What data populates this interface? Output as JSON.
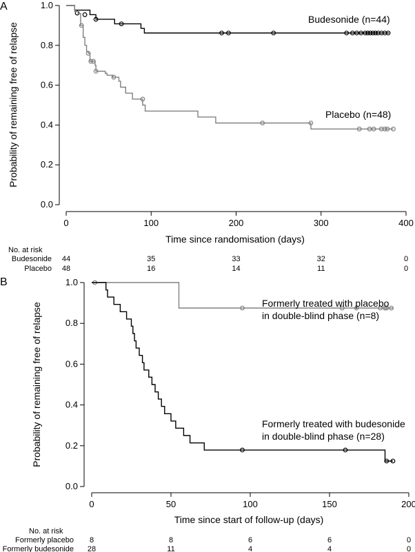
{
  "panels": [
    {
      "label": "A",
      "chart_data": {
        "type": "line",
        "xlabel": "Time since randomisation (days)",
        "ylabel": "Probability of remaining free of relapse",
        "xlim": [
          0,
          400
        ],
        "ylim": [
          0,
          1
        ],
        "xticks": [
          0,
          100,
          200,
          300,
          400
        ],
        "yticks": [
          "0.0",
          "0.2",
          "0.4",
          "0.6",
          "0.8",
          "1.0"
        ],
        "series": [
          {
            "name": "Budesonide (n=44)",
            "color": "#000000",
            "steps": [
              [
                0,
                1.0
              ],
              [
                10,
                0.977
              ],
              [
                28,
                0.954
              ],
              [
                35,
                0.931
              ],
              [
                57,
                0.908
              ],
              [
                65,
                0.908
              ],
              [
                88,
                0.885
              ],
              [
                92,
                0.862
              ],
              [
                380,
                0.862
              ]
            ],
            "censored": [
              [
                13,
                0.962
              ],
              [
                22,
                0.954
              ],
              [
                35,
                0.931
              ],
              [
                65,
                0.908
              ],
              [
                183,
                0.862
              ],
              [
                191,
                0.862
              ],
              [
                244,
                0.862
              ],
              [
                330,
                0.862
              ],
              [
                337,
                0.862
              ],
              [
                342,
                0.862
              ],
              [
                347,
                0.862
              ],
              [
                352,
                0.862
              ],
              [
                355,
                0.862
              ],
              [
                358,
                0.862
              ],
              [
                361,
                0.862
              ],
              [
                364,
                0.862
              ],
              [
                367,
                0.862
              ],
              [
                371,
                0.862
              ],
              [
                375,
                0.862
              ],
              [
                379,
                0.862
              ]
            ]
          },
          {
            "name": "Placebo (n=48)",
            "color": "#808080",
            "steps": [
              [
                0,
                1.0
              ],
              [
                10,
                0.97
              ],
              [
                14,
                0.96
              ],
              [
                17,
                0.9
              ],
              [
                20,
                0.84
              ],
              [
                22,
                0.8
              ],
              [
                24,
                0.77
              ],
              [
                26,
                0.76
              ],
              [
                28,
                0.72
              ],
              [
                34,
                0.7
              ],
              [
                35,
                0.67
              ],
              [
                46,
                0.66
              ],
              [
                48,
                0.65
              ],
              [
                55,
                0.64
              ],
              [
                62,
                0.62
              ],
              [
                64,
                0.59
              ],
              [
                70,
                0.56
              ],
              [
                78,
                0.53
              ],
              [
                90,
                0.5
              ],
              [
                93,
                0.47
              ],
              [
                155,
                0.44
              ],
              [
                176,
                0.41
              ],
              [
                288,
                0.38
              ],
              [
                385,
                0.38
              ]
            ],
            "censored": [
              [
                18,
                0.9
              ],
              [
                26,
                0.76
              ],
              [
                29,
                0.72
              ],
              [
                32,
                0.72
              ],
              [
                35,
                0.67
              ],
              [
                56,
                0.64
              ],
              [
                90,
                0.53
              ],
              [
                231,
                0.41
              ],
              [
                288,
                0.41
              ],
              [
                345,
                0.38
              ],
              [
                357,
                0.38
              ],
              [
                362,
                0.38
              ],
              [
                371,
                0.38
              ],
              [
                375,
                0.38
              ],
              [
                378,
                0.38
              ],
              [
                385,
                0.38
              ]
            ]
          }
        ]
      },
      "risk_table": {
        "header": "No. at risk",
        "times": [
          0,
          100,
          200,
          300,
          400
        ],
        "rows": [
          {
            "label": "Budesonide",
            "values": [
              "44",
              "35",
              "33",
              "32",
              "0"
            ]
          },
          {
            "label": "Placebo",
            "values": [
              "48",
              "16",
              "14",
              "11",
              "0"
            ]
          }
        ]
      }
    },
    {
      "label": "B",
      "chart_data": {
        "type": "line",
        "xlabel": "Time since start of follow-up (days)",
        "ylabel": "Probability of remaining free of relapse",
        "xlim": [
          0,
          200
        ],
        "ylim": [
          0,
          1
        ],
        "xticks": [
          0,
          50,
          100,
          150,
          200
        ],
        "yticks": [
          "0.0",
          "0.2",
          "0.4",
          "0.6",
          "0.8",
          "1.0"
        ],
        "series": [
          {
            "name": "Formerly treated with placebo in double-blind phase (n=8)",
            "name_lines": [
              "Formerly treated with placebo",
              "in double-blind phase (n=8)"
            ],
            "color": "#808080",
            "steps": [
              [
                0,
                1.0
              ],
              [
                55,
                0.875
              ],
              [
                190,
                0.875
              ]
            ],
            "censored": [
              [
                2,
                1.0
              ],
              [
                95,
                0.875
              ],
              [
                158,
                0.875
              ],
              [
                167,
                0.875
              ],
              [
                182,
                0.875
              ],
              [
                185,
                0.875
              ],
              [
                186,
                0.875
              ],
              [
                189,
                0.875
              ]
            ]
          },
          {
            "name": "Formerly treated with budesonide in double-blind phase (n=28)",
            "name_lines": [
              "Formerly treated with budesonide",
              "in double-blind phase (n=28)"
            ],
            "color": "#000000",
            "steps": [
              [
                0,
                1.0
              ],
              [
                9,
                0.964
              ],
              [
                10,
                0.929
              ],
              [
                14,
                0.893
              ],
              [
                18,
                0.857
              ],
              [
                22,
                0.821
              ],
              [
                25,
                0.786
              ],
              [
                26,
                0.75
              ],
              [
                27,
                0.714
              ],
              [
                28,
                0.679
              ],
              [
                30,
                0.643
              ],
              [
                32,
                0.607
              ],
              [
                33,
                0.571
              ],
              [
                36,
                0.536
              ],
              [
                38,
                0.5
              ],
              [
                40,
                0.464
              ],
              [
                42,
                0.429
              ],
              [
                44,
                0.393
              ],
              [
                46,
                0.357
              ],
              [
                50,
                0.321
              ],
              [
                53,
                0.286
              ],
              [
                58,
                0.25
              ],
              [
                62,
                0.214
              ],
              [
                71,
                0.179
              ],
              [
                95,
                0.179
              ],
              [
                160,
                0.179
              ],
              [
                185,
                0.125
              ],
              [
                190,
                0.125
              ]
            ],
            "censored": [
              [
                95,
                0.179
              ],
              [
                160,
                0.179
              ],
              [
                186,
                0.125
              ],
              [
                190,
                0.125
              ]
            ]
          }
        ]
      },
      "risk_table": {
        "header": "No. at risk",
        "times": [
          0,
          50,
          100,
          150,
          200
        ],
        "rows": [
          {
            "label": "Formerly placebo",
            "values": [
              "8",
              "8",
              "6",
              "6",
              "0"
            ]
          },
          {
            "label": "Formerly budesonide",
            "values": [
              "28",
              "11",
              "4",
              "4",
              "0"
            ]
          }
        ]
      }
    }
  ]
}
